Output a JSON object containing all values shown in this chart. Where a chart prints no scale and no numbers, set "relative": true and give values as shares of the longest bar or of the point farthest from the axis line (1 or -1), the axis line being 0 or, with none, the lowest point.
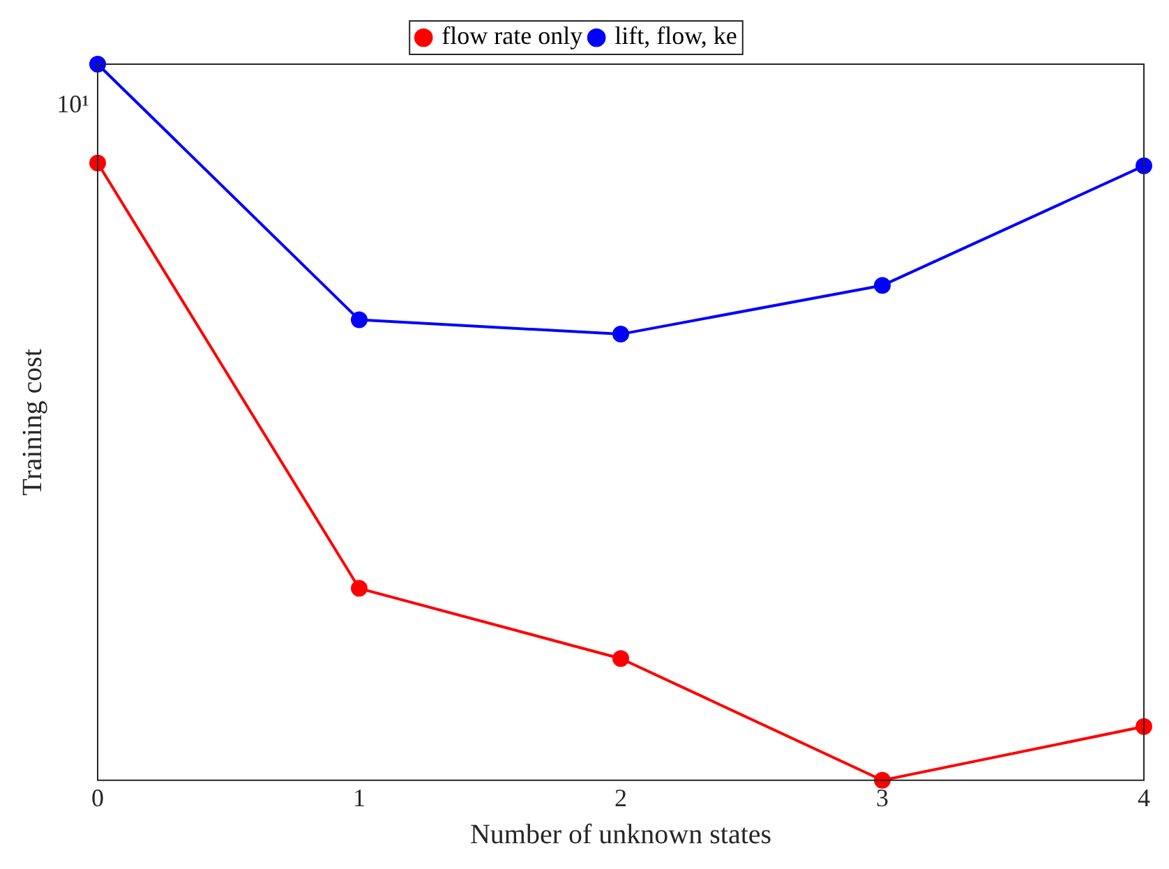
{
  "chart_data": {
    "type": "line",
    "xlabel": "Number of unknown states",
    "ylabel": "Training cost",
    "x": [
      0,
      1,
      2,
      3,
      4
    ],
    "series": [
      {
        "name": "flow rate only",
        "color": "#ff0000",
        "values": [
          0.862,
          0.268,
          0.17,
          0,
          0.075
        ]
      },
      {
        "name": "lift, flow, ke",
        "color": "#0000ff",
        "values": [
          1,
          0.643,
          0.623,
          0.691,
          0.858
        ]
      }
    ],
    "relative": true,
    "xlim": [
      0,
      4
    ],
    "xticks": [
      0,
      1,
      2,
      3,
      4
    ],
    "annotations": [
      "10¹"
    ],
    "marker": "circle",
    "line_style": "solid",
    "grid": false,
    "legend": "top"
  }
}
